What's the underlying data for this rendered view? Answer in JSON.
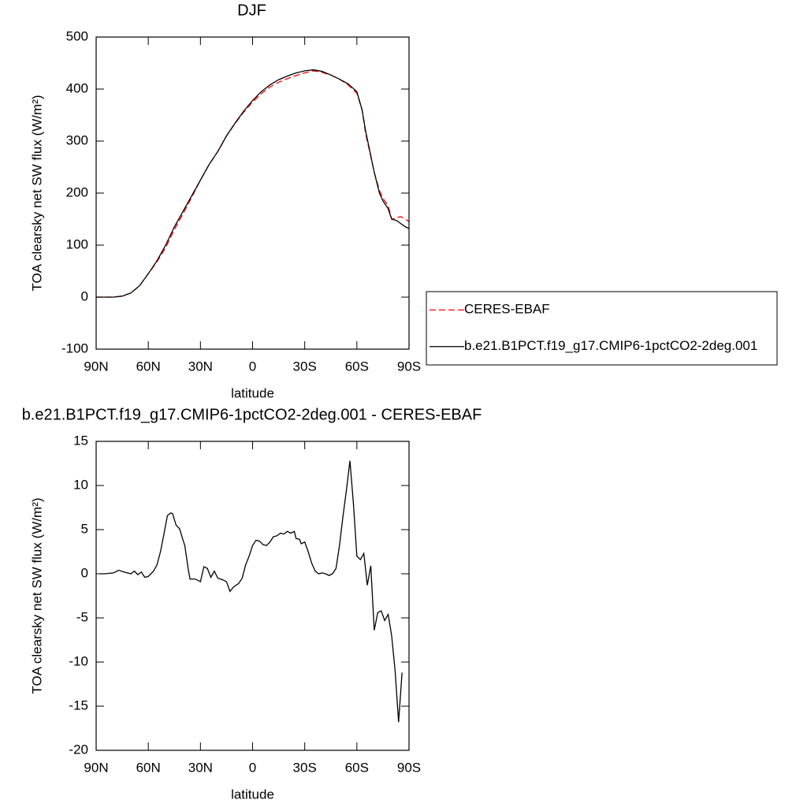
{
  "chart_data": [
    {
      "type": "line",
      "title": "DJF",
      "x_label": "latitude",
      "y_label": "TOA clearsky net SW flux (W/m²)",
      "x": [
        90,
        85,
        80,
        75,
        70,
        65,
        60,
        55,
        50,
        45,
        40,
        35,
        30,
        25,
        20,
        15,
        10,
        5,
        0,
        -5,
        -10,
        -15,
        -20,
        -25,
        -30,
        -35,
        -40,
        -45,
        -50,
        -55,
        -60,
        -63,
        -65,
        -70,
        -73,
        -75,
        -78,
        -80,
        -83,
        -85,
        -88,
        -90
      ],
      "xlim": [
        90,
        -90
      ],
      "xticks": [
        {
          "value": 90,
          "label": "90N"
        },
        {
          "value": 60,
          "label": "60N"
        },
        {
          "value": 30,
          "label": "30N"
        },
        0,
        {
          "value": -30,
          "label": "30S"
        },
        {
          "value": -60,
          "label": "60S"
        },
        {
          "value": -90,
          "label": "90S"
        }
      ],
      "ylim": [
        -100,
        500
      ],
      "yticks": [
        -100,
        0,
        100,
        200,
        300,
        400,
        500
      ],
      "legend": "right",
      "series": [
        {
          "name": "CERES-EBAF",
          "color": "#ff0000",
          "dash": true,
          "values": [
            0,
            0,
            0,
            2,
            8,
            22,
            45,
            68,
            95,
            130,
            160,
            192,
            225,
            255,
            280,
            310,
            334,
            356,
            375,
            391,
            404,
            413,
            420,
            426,
            431,
            435,
            432,
            427,
            419,
            408,
            392,
            360,
            315,
            240,
            205,
            190,
            176,
            150,
            152,
            155,
            150,
            145
          ]
        },
        {
          "name": "b.e21.B1PCT.f19_g17.CMIP6-1pctCO2-2deg.001",
          "color": "#000000",
          "dash": false,
          "values": [
            0,
            0,
            0,
            2,
            8,
            22,
            45,
            70,
            100,
            135,
            165,
            195,
            225,
            255,
            280,
            310,
            335,
            358,
            378,
            395,
            408,
            418,
            425,
            431,
            435,
            437,
            434,
            427,
            419,
            410,
            395,
            360,
            320,
            240,
            200,
            185,
            170,
            150,
            147,
            142,
            135,
            132
          ]
        }
      ]
    },
    {
      "type": "line",
      "title": "b.e21.B1PCT.f19_g17.CMIP6-1pctCO2-2deg.001 - CERES-EBAF",
      "x_label": "latitude",
      "y_label": "TOA clearsky net SW flux (W/m²)",
      "x": [
        88,
        85,
        80,
        77,
        74,
        70,
        68,
        66,
        64,
        62,
        60,
        57,
        55,
        53,
        51,
        49,
        47,
        46,
        44,
        42,
        40,
        39,
        37,
        36,
        33,
        30,
        28,
        26,
        24,
        22,
        20,
        17,
        15,
        13,
        11,
        8,
        6,
        4,
        2,
        0,
        -2,
        -4,
        -6,
        -8,
        -10,
        -12,
        -14,
        -16,
        -18,
        -20,
        -22,
        -24,
        -25,
        -27,
        -28,
        -30,
        -32,
        -34,
        -36,
        -38,
        -40,
        -42,
        -44,
        -46,
        -48,
        -50,
        -52,
        -54,
        -56,
        -58,
        -60,
        -62,
        -64,
        -66,
        -68,
        -70,
        -72,
        -74,
        -76,
        -78,
        -80,
        -82,
        -84,
        -86
      ],
      "xlim": [
        90,
        -90
      ],
      "xticks": [
        {
          "value": 90,
          "label": "90N"
        },
        {
          "value": 60,
          "label": "60N"
        },
        {
          "value": 30,
          "label": "30N"
        },
        0,
        {
          "value": -30,
          "label": "30S"
        },
        {
          "value": -60,
          "label": "60S"
        },
        {
          "value": -90,
          "label": "90S"
        }
      ],
      "ylim": [
        -20,
        15
      ],
      "yticks": [
        -20,
        -15,
        -10,
        -5,
        0,
        5,
        10,
        15
      ],
      "series": [
        {
          "color": "#000000",
          "dash": false,
          "values": [
            0,
            0,
            0.1,
            0.4,
            0.2,
            0,
            0.3,
            -0.1,
            0.2,
            -0.4,
            -0.3,
            0.3,
            1,
            2.5,
            4.5,
            6.6,
            6.9,
            6.8,
            5.5,
            5.1,
            3.8,
            3.2,
            0.5,
            -0.6,
            -0.6,
            -0.9,
            0.8,
            0.6,
            -0.4,
            0.3,
            -0.5,
            -0.7,
            -0.9,
            -2,
            -1.5,
            -1.1,
            -0.5,
            1,
            2,
            3.2,
            3.8,
            3.7,
            3.3,
            3.2,
            3.6,
            4.2,
            4.3,
            4.6,
            4.5,
            4.8,
            4.6,
            4.8,
            4,
            3.9,
            3.4,
            3.6,
            2.5,
            1.2,
            0.3,
            0,
            0.1,
            0,
            -0.2,
            0,
            0.6,
            3.2,
            6.5,
            9.5,
            12.8,
            8,
            2,
            1.6,
            2.3,
            -1.3,
            0.9,
            -6.4,
            -4.4,
            -4.2,
            -5.3,
            -4.6,
            -7,
            -11,
            -16.8,
            -11.2
          ]
        }
      ]
    }
  ]
}
